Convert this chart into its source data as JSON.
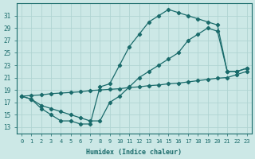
{
  "xlabel": "Humidex (Indice chaleur)",
  "background_color": "#cce8e6",
  "grid_color": "#b0d4d2",
  "line_color": "#1a6b6b",
  "xlim": [
    -0.5,
    23.5
  ],
  "ylim": [
    12,
    33
  ],
  "xticks": [
    0,
    1,
    2,
    3,
    4,
    5,
    6,
    7,
    8,
    9,
    10,
    11,
    12,
    13,
    14,
    15,
    16,
    17,
    18,
    19,
    20,
    21,
    22,
    23
  ],
  "yticks": [
    13,
    15,
    17,
    19,
    21,
    23,
    25,
    27,
    29,
    31
  ],
  "line1_x": [
    0,
    1,
    2,
    3,
    4,
    5,
    6,
    7,
    8,
    9,
    10,
    11,
    12,
    13,
    14,
    15,
    16,
    17,
    18,
    19,
    20,
    21,
    22,
    23
  ],
  "line1_y": [
    18,
    17.5,
    16,
    15,
    14,
    14,
    13.5,
    13.5,
    19.5,
    20,
    23,
    26,
    28,
    30,
    31,
    32,
    31.5,
    31,
    30.5,
    30,
    29.5,
    22,
    22,
    22.5
  ],
  "line2_x": [
    0,
    1,
    2,
    3,
    4,
    5,
    6,
    7,
    8,
    9,
    10,
    11,
    12,
    13,
    14,
    15,
    16,
    17,
    18,
    19,
    20,
    21,
    22,
    23
  ],
  "line2_y": [
    18,
    17.5,
    16.5,
    16,
    15.5,
    15,
    14.5,
    14,
    14,
    17,
    18,
    19.5,
    21,
    22,
    23,
    24,
    25,
    27,
    28,
    29,
    28.5,
    22,
    22,
    22.5
  ],
  "line3_x": [
    0,
    1,
    2,
    3,
    4,
    5,
    6,
    7,
    8,
    9,
    10,
    11,
    12,
    13,
    14,
    15,
    16,
    17,
    18,
    19,
    20,
    21,
    22,
    23
  ],
  "line3_y": [
    18,
    18.1,
    18.2,
    18.4,
    18.5,
    18.6,
    18.7,
    18.9,
    19,
    19.1,
    19.2,
    19.4,
    19.5,
    19.7,
    19.8,
    20,
    20.1,
    20.3,
    20.5,
    20.7,
    20.9,
    21,
    21.5,
    22
  ]
}
